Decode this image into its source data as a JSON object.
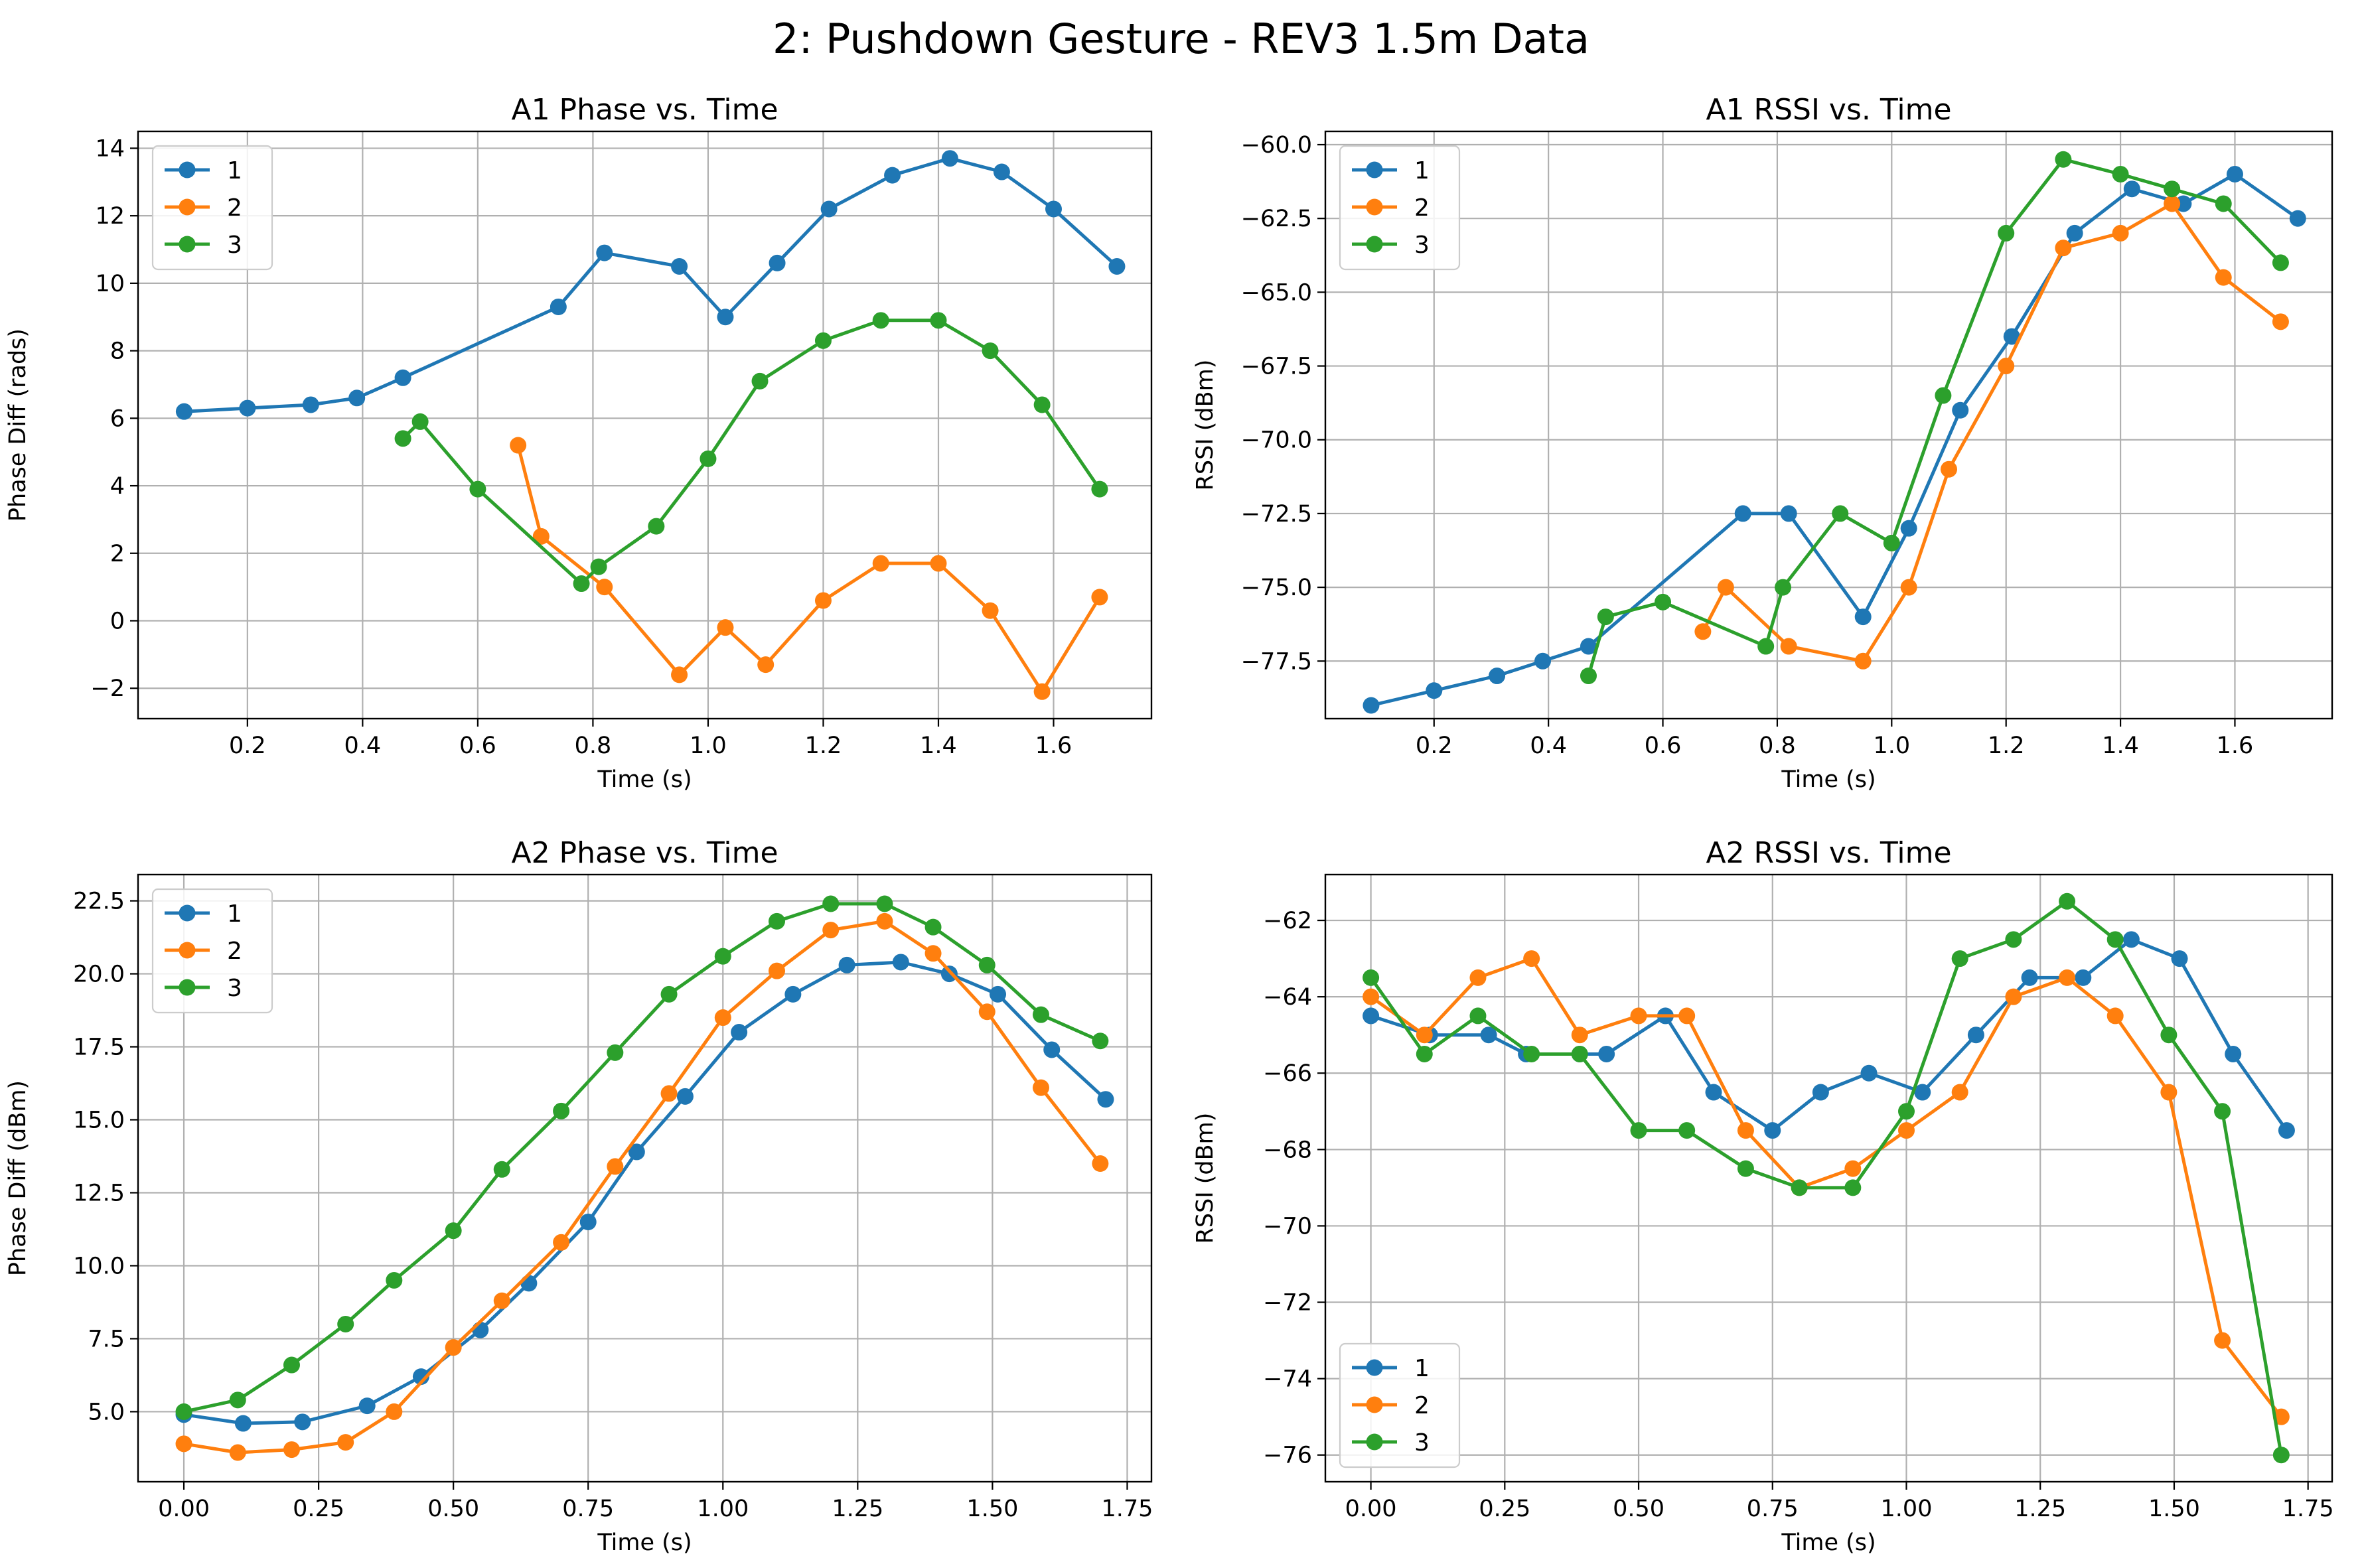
{
  "figure": {
    "title": "2: Pushdown Gesture - REV3 1.5m Data",
    "colors": {
      "1": "#1f77b4",
      "2": "#ff7f0e",
      "3": "#2ca02c",
      "grid": "#b0b0b0"
    }
  },
  "chart_data": [
    {
      "type": "line",
      "title": "A1 Phase vs. Time",
      "xlabel": "Time (s)",
      "ylabel": "Phase Diff (rads)",
      "xlim": [
        0.01,
        1.77
      ],
      "ylim": [
        -2.9,
        14.5
      ],
      "xticks": [
        0.2,
        0.4,
        0.6,
        0.8,
        1.0,
        1.2,
        1.4,
        1.6
      ],
      "xtick_labels": [
        "0.2",
        "0.4",
        "0.6",
        "0.8",
        "1.0",
        "1.2",
        "1.4",
        "1.6"
      ],
      "yticks": [
        -2,
        0,
        2,
        4,
        6,
        8,
        10,
        12,
        14
      ],
      "ytick_labels": [
        "−2",
        "0",
        "2",
        "4",
        "6",
        "8",
        "10",
        "12",
        "14"
      ],
      "grid": true,
      "legend_position": "upper-left",
      "series": [
        {
          "name": "1",
          "x": [
            0.09,
            0.2,
            0.31,
            0.39,
            0.47,
            0.74,
            0.82,
            0.95,
            1.03,
            1.12,
            1.21,
            1.32,
            1.42,
            1.51,
            1.6,
            1.71
          ],
          "y": [
            6.2,
            6.3,
            6.4,
            6.6,
            7.2,
            9.3,
            10.9,
            10.5,
            9.0,
            10.6,
            12.2,
            13.2,
            13.7,
            13.3,
            12.2,
            10.5
          ]
        },
        {
          "name": "2",
          "x": [
            0.67,
            0.71,
            0.82,
            0.95,
            1.03,
            1.1,
            1.2,
            1.3,
            1.4,
            1.49,
            1.58,
            1.68
          ],
          "y": [
            5.2,
            2.5,
            1.0,
            -1.6,
            -0.2,
            -1.3,
            0.6,
            1.7,
            1.7,
            0.3,
            -2.1,
            0.7
          ]
        },
        {
          "name": "3",
          "x": [
            0.47,
            0.5,
            0.6,
            0.78,
            0.81,
            0.91,
            1.0,
            1.09,
            1.2,
            1.3,
            1.4,
            1.49,
            1.58,
            1.68
          ],
          "y": [
            5.4,
            5.9,
            3.9,
            1.1,
            1.6,
            2.8,
            4.8,
            7.1,
            8.3,
            8.9,
            8.9,
            8.0,
            6.4,
            3.9
          ]
        }
      ]
    },
    {
      "type": "line",
      "title": "A1 RSSI vs. Time",
      "xlabel": "Time (s)",
      "ylabel": "RSSI (dBm)",
      "xlim": [
        0.01,
        1.77
      ],
      "ylim": [
        -79.45,
        -59.55
      ],
      "xticks": [
        0.2,
        0.4,
        0.6,
        0.8,
        1.0,
        1.2,
        1.4,
        1.6
      ],
      "xtick_labels": [
        "0.2",
        "0.4",
        "0.6",
        "0.8",
        "1.0",
        "1.2",
        "1.4",
        "1.6"
      ],
      "yticks": [
        -77.5,
        -75.0,
        -72.5,
        -70.0,
        -67.5,
        -65.0,
        -62.5,
        -60.0
      ],
      "ytick_labels": [
        "−77.5",
        "−75.0",
        "−72.5",
        "−70.0",
        "−67.5",
        "−65.0",
        "−62.5",
        "−60.0"
      ],
      "grid": true,
      "legend_position": "upper-left",
      "series": [
        {
          "name": "1",
          "x": [
            0.09,
            0.2,
            0.31,
            0.39,
            0.47,
            0.74,
            0.82,
            0.95,
            1.03,
            1.12,
            1.21,
            1.32,
            1.42,
            1.51,
            1.6,
            1.71
          ],
          "y": [
            -79,
            -78.5,
            -78,
            -77.5,
            -77,
            -72.5,
            -72.5,
            -76,
            -73,
            -69,
            -66.5,
            -63,
            -61.5,
            -62,
            -61,
            -62.5
          ]
        },
        {
          "name": "2",
          "x": [
            0.67,
            0.71,
            0.82,
            0.95,
            1.03,
            1.1,
            1.2,
            1.3,
            1.4,
            1.49,
            1.58,
            1.68
          ],
          "y": [
            -76.5,
            -75,
            -77,
            -77.5,
            -75,
            -71,
            -67.5,
            -63.5,
            -63,
            -62,
            -64.5,
            -66
          ]
        },
        {
          "name": "3",
          "x": [
            0.47,
            0.5,
            0.6,
            0.78,
            0.81,
            0.91,
            1.0,
            1.09,
            1.2,
            1.3,
            1.4,
            1.49,
            1.58,
            1.68
          ],
          "y": [
            -78,
            -76,
            -75.5,
            -77,
            -75,
            -72.5,
            -73.5,
            -68.5,
            -63,
            -60.5,
            -61,
            -61.5,
            -62,
            -64
          ]
        }
      ]
    },
    {
      "type": "line",
      "title": "A2 Phase vs. Time",
      "xlabel": "Time (s)",
      "ylabel": "Phase Diff (dBm)",
      "xlim": [
        -0.085,
        1.795
      ],
      "ylim": [
        2.6,
        23.4
      ],
      "xticks": [
        0.0,
        0.25,
        0.5,
        0.75,
        1.0,
        1.25,
        1.5,
        1.75
      ],
      "xtick_labels": [
        "0.00",
        "0.25",
        "0.50",
        "0.75",
        "1.00",
        "1.25",
        "1.50",
        "1.75"
      ],
      "yticks": [
        5.0,
        7.5,
        10.0,
        12.5,
        15.0,
        17.5,
        20.0,
        22.5
      ],
      "ytick_labels": [
        "5.0",
        "7.5",
        "10.0",
        "12.5",
        "15.0",
        "17.5",
        "20.0",
        "22.5"
      ],
      "grid": true,
      "legend_position": "upper-left",
      "series": [
        {
          "name": "1",
          "x": [
            0.0,
            0.11,
            0.22,
            0.34,
            0.44,
            0.55,
            0.64,
            0.75,
            0.84,
            0.93,
            1.03,
            1.13,
            1.23,
            1.33,
            1.42,
            1.51,
            1.61,
            1.71
          ],
          "y": [
            4.9,
            4.6,
            4.65,
            5.2,
            6.2,
            7.8,
            9.4,
            11.5,
            13.9,
            15.8,
            18.0,
            19.3,
            20.3,
            20.4,
            20.0,
            19.3,
            17.4,
            15.7
          ]
        },
        {
          "name": "2",
          "x": [
            0.0,
            0.1,
            0.2,
            0.3,
            0.39,
            0.5,
            0.59,
            0.7,
            0.8,
            0.9,
            1.0,
            1.1,
            1.2,
            1.3,
            1.39,
            1.49,
            1.59,
            1.7
          ],
          "y": [
            3.9,
            3.6,
            3.7,
            3.95,
            5.0,
            7.2,
            8.8,
            10.8,
            13.4,
            15.9,
            18.5,
            20.1,
            21.5,
            21.8,
            20.7,
            18.7,
            16.1,
            13.5
          ]
        },
        {
          "name": "3",
          "x": [
            0.0,
            0.1,
            0.2,
            0.3,
            0.39,
            0.5,
            0.59,
            0.7,
            0.8,
            0.9,
            1.0,
            1.1,
            1.2,
            1.3,
            1.39,
            1.49,
            1.59,
            1.7
          ],
          "y": [
            5.0,
            5.4,
            6.6,
            8.0,
            9.5,
            11.2,
            13.3,
            15.3,
            17.3,
            19.3,
            20.6,
            21.8,
            22.4,
            22.4,
            21.6,
            20.3,
            18.6,
            17.7
          ]
        }
      ]
    },
    {
      "type": "line",
      "title": "A2 RSSI vs. Time",
      "xlabel": "Time (s)",
      "ylabel": "RSSI (dBm)",
      "xlim": [
        -0.085,
        1.795
      ],
      "ylim": [
        -76.7,
        -60.8
      ],
      "xticks": [
        0.0,
        0.25,
        0.5,
        0.75,
        1.0,
        1.25,
        1.5,
        1.75
      ],
      "xtick_labels": [
        "0.00",
        "0.25",
        "0.50",
        "0.75",
        "1.00",
        "1.25",
        "1.50",
        "1.75"
      ],
      "yticks": [
        -76,
        -74,
        -72,
        -70,
        -68,
        -66,
        -64,
        -62
      ],
      "ytick_labels": [
        "−76",
        "−74",
        "−72",
        "−70",
        "−68",
        "−66",
        "−64",
        "−62"
      ],
      "grid": true,
      "legend_position": "lower-left",
      "series": [
        {
          "name": "1",
          "x": [
            0.0,
            0.11,
            0.22,
            0.29,
            0.39,
            0.44,
            0.55,
            0.64,
            0.75,
            0.84,
            0.93,
            1.03,
            1.13,
            1.23,
            1.33,
            1.42,
            1.51,
            1.61,
            1.71
          ],
          "y": [
            -64.5,
            -65,
            -65,
            -65.5,
            -65.5,
            -65.5,
            -64.5,
            -66.5,
            -67.5,
            -66.5,
            -66,
            -66.5,
            -65,
            -63.5,
            -63.5,
            -62.5,
            -63,
            -65.5,
            -67.5
          ]
        },
        {
          "name": "2",
          "x": [
            0.0,
            0.1,
            0.2,
            0.3,
            0.39,
            0.5,
            0.59,
            0.7,
            0.8,
            0.9,
            1.0,
            1.1,
            1.2,
            1.3,
            1.39,
            1.49,
            1.59,
            1.7
          ],
          "y": [
            -64,
            -65,
            -63.5,
            -63,
            -65,
            -64.5,
            -64.5,
            -67.5,
            -69,
            -68.5,
            -67.5,
            -66.5,
            -64,
            -63.5,
            -64.5,
            -66.5,
            -73,
            -75
          ]
        },
        {
          "name": "3",
          "x": [
            0.0,
            0.1,
            0.2,
            0.3,
            0.39,
            0.5,
            0.59,
            0.7,
            0.8,
            0.9,
            1.0,
            1.1,
            1.2,
            1.3,
            1.39,
            1.49,
            1.59,
            1.7
          ],
          "y": [
            -63.5,
            -65.5,
            -64.5,
            -65.5,
            -65.5,
            -67.5,
            -67.5,
            -68.5,
            -69,
            -69,
            -67,
            -63,
            -62.5,
            -61.5,
            -62.5,
            -65,
            -67,
            -76
          ]
        }
      ]
    }
  ]
}
